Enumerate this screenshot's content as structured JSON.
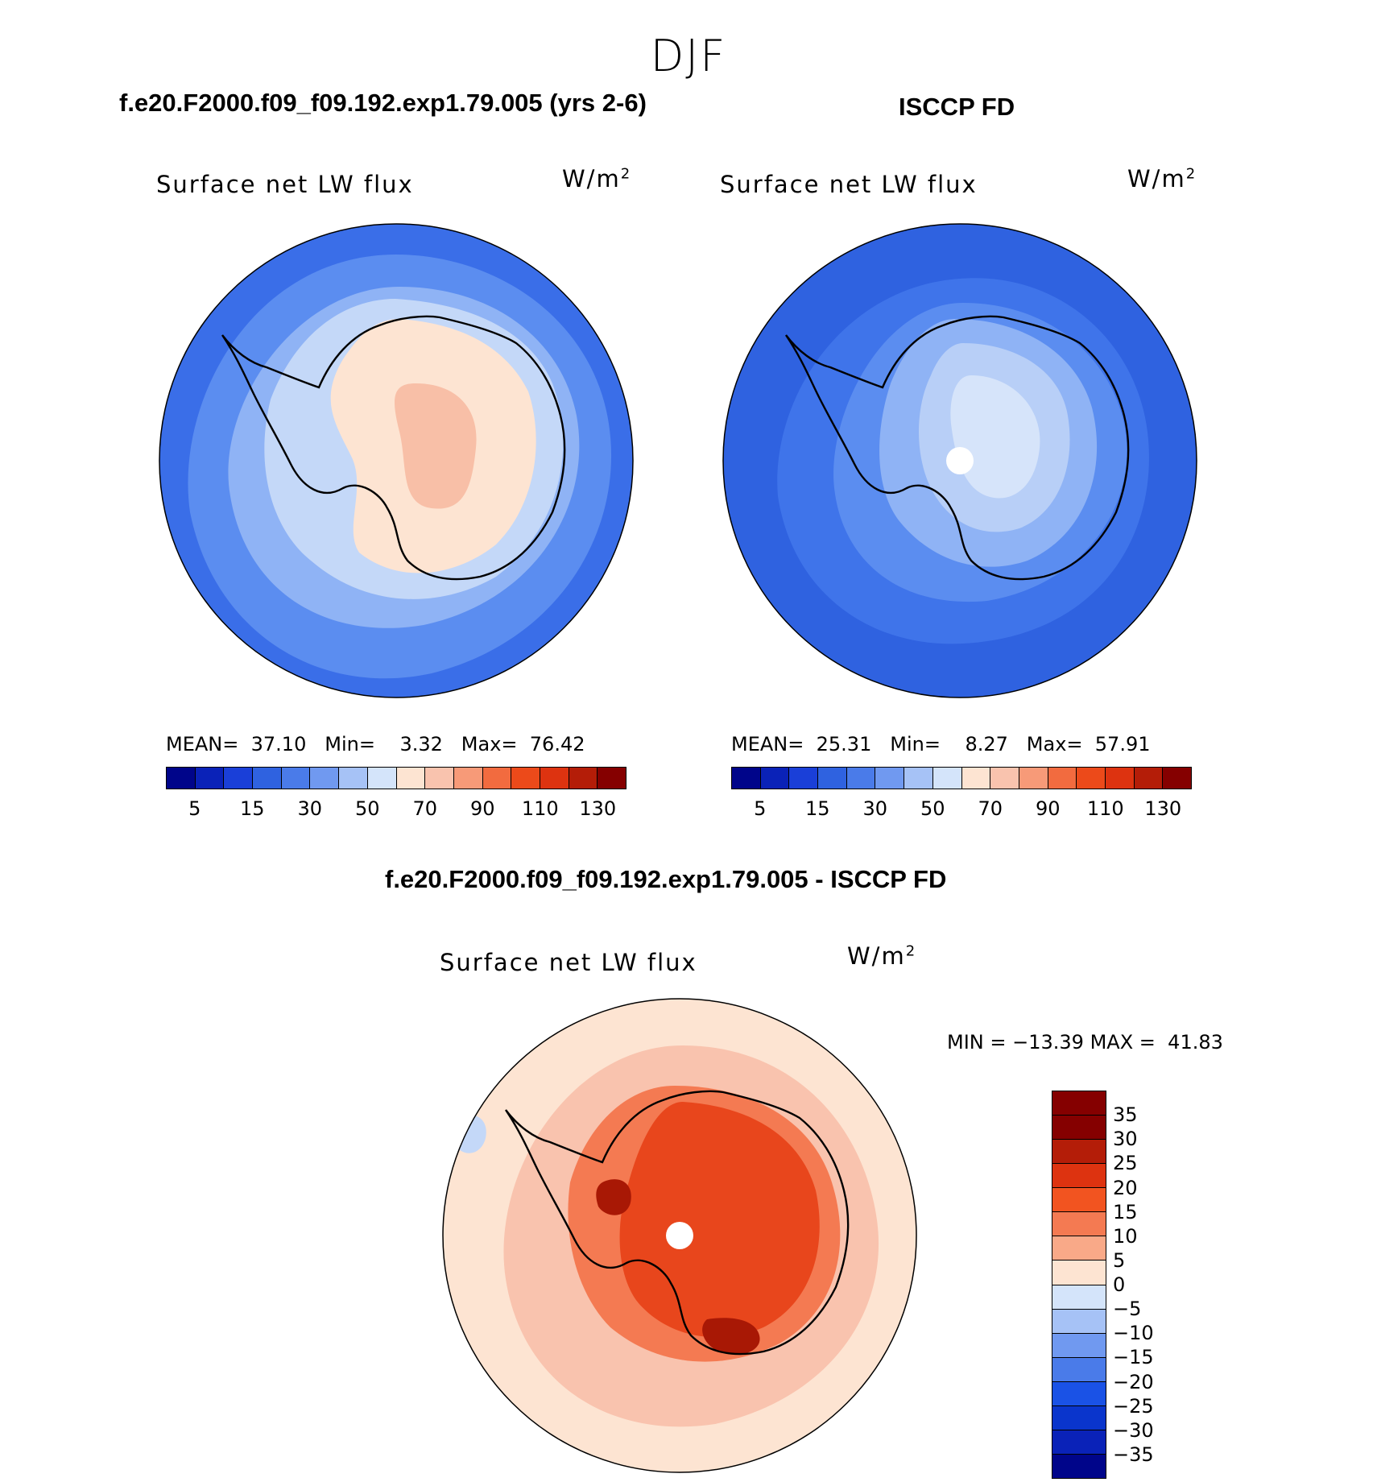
{
  "figure": {
    "title": "DJF"
  },
  "panels": [
    {
      "title": "f.e20.F2000.f09_f09.192.exp1.79.005 (yrs 2-6)",
      "variable": "Surface net LW flux",
      "units_base": "W/m",
      "units_exp": "2",
      "stats": {
        "mean_label": "MEAN=",
        "mean": "37.10",
        "min_label": "Min=",
        "min": "3.32",
        "max_label": "Max=",
        "max": "76.42"
      },
      "field": {
        "ocean_outer": "#3a6ee8",
        "ocean_mid": "#5b8df0",
        "ring": "#8fb3f5",
        "coast_band": "#c4d8f8",
        "interior": "#fde4d2",
        "core": "#f8bfa7"
      },
      "pole_mask": false
    },
    {
      "title": "ISCCP FD",
      "variable": "Surface net LW flux",
      "units_base": "W/m",
      "units_exp": "2",
      "stats": {
        "mean_label": "MEAN=",
        "mean": "25.31",
        "min_label": "Min=",
        "min": "8.27",
        "max_label": "Max=",
        "max": "57.91"
      },
      "field": {
        "ocean_outer": "#2f62e0",
        "ocean_mid": "#3f74ea",
        "ring": "#5b8df0",
        "coast_band": "#8fb3f5",
        "interior": "#b8cff7",
        "core": "#d6e4fa"
      },
      "pole_mask": true
    }
  ],
  "abs_colorbar": {
    "colors": [
      "#00058a",
      "#0a22b8",
      "#1a3fd8",
      "#2f62e0",
      "#4a7be9",
      "#7099f0",
      "#a6c2f6",
      "#d4e4fa",
      "#fde4d2",
      "#f9c3ae",
      "#f79a78",
      "#f26b3f",
      "#ec4a1a",
      "#dd3310",
      "#b41d08",
      "#850000"
    ],
    "ticks": [
      "5",
      "15",
      "30",
      "50",
      "70",
      "90",
      "110",
      "130"
    ]
  },
  "diff_panel": {
    "title": "f.e20.F2000.f09_f09.192.exp1.79.005 - ISCCP FD",
    "variable": "Surface net LW flux",
    "units_base": "W/m",
    "units_exp": "2",
    "stats": {
      "min_label": "MIN =",
      "min": "−13.39",
      "max_label": "MAX =",
      "max": "41.83"
    },
    "field": {
      "ocean": "#fde4d2",
      "ring": "#f9c3ae",
      "coast_band": "#f47a52",
      "interior": "#e8461c",
      "core": "#a81805"
    },
    "pole_mask": true
  },
  "diff_colorbar": {
    "colors": [
      "#850000",
      "#b41d08",
      "#dd3310",
      "#f25420",
      "#f47a52",
      "#f9a988",
      "#fde4d2",
      "#d4e4fa",
      "#a6c2f6",
      "#7099f0",
      "#4a7be9",
      "#1a52e6",
      "#0a35cc",
      "#0a22b8",
      "#00058a"
    ],
    "ticks": [
      "35",
      "30",
      "25",
      "20",
      "15",
      "10",
      "5",
      "0",
      "−5",
      "−10",
      "−15",
      "−20",
      "−25",
      "−30",
      "−35"
    ]
  }
}
